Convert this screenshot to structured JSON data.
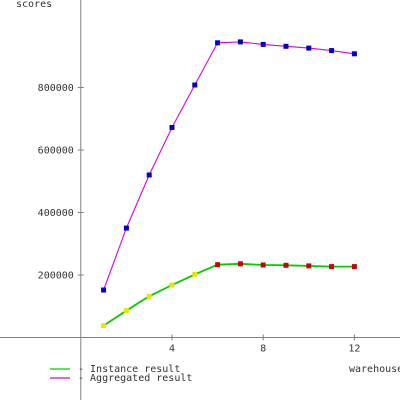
{
  "chart_data": {
    "type": "line",
    "xlabel": "warehouses",
    "ylabel": "scores",
    "x_ticks": [
      4,
      8,
      12
    ],
    "y_ticks": [
      200000,
      400000,
      600000,
      800000
    ],
    "xlim": [
      -1,
      14
    ],
    "ylim": [
      -200000,
      1080000
    ],
    "grid": false,
    "legend_position": "bottom-left",
    "series": [
      {
        "name": "Instance result",
        "color": "#00cc00",
        "x": [
          1,
          2,
          3,
          4,
          5,
          6,
          7,
          8,
          9,
          10,
          11,
          12
        ],
        "y": [
          38000,
          86000,
          132000,
          168000,
          202000,
          233000,
          236000,
          232000,
          231000,
          229000,
          227000,
          227000
        ],
        "marker_colors": [
          "#e6e600",
          "#e6e600",
          "#e6e600",
          "#e6e600",
          "#e6e600",
          "#cc0000",
          "#cc0000",
          "#cc0000",
          "#cc0000",
          "#cc0000",
          "#cc0000",
          "#cc0000"
        ]
      },
      {
        "name": "Aggregated result",
        "color": "#dd00dd",
        "x": [
          1,
          2,
          3,
          4,
          5,
          6,
          7,
          8,
          9,
          10,
          11,
          12
        ],
        "y": [
          152000,
          350000,
          520000,
          672000,
          808000,
          943000,
          946000,
          938000,
          932000,
          926000,
          918000,
          908000
        ],
        "marker_colors": [
          "#0000cc",
          "#0000cc",
          "#0000cc",
          "#0000cc",
          "#0000cc",
          "#0000cc",
          "#0000cc",
          "#0000cc",
          "#0000cc",
          "#0000cc",
          "#0000cc",
          "#0000cc"
        ]
      }
    ]
  },
  "legend": {
    "entries": [
      {
        "label": "- Instance result",
        "color": "#00cc00"
      },
      {
        "label": "- Aggregated result",
        "color": "#dd00dd"
      }
    ]
  }
}
